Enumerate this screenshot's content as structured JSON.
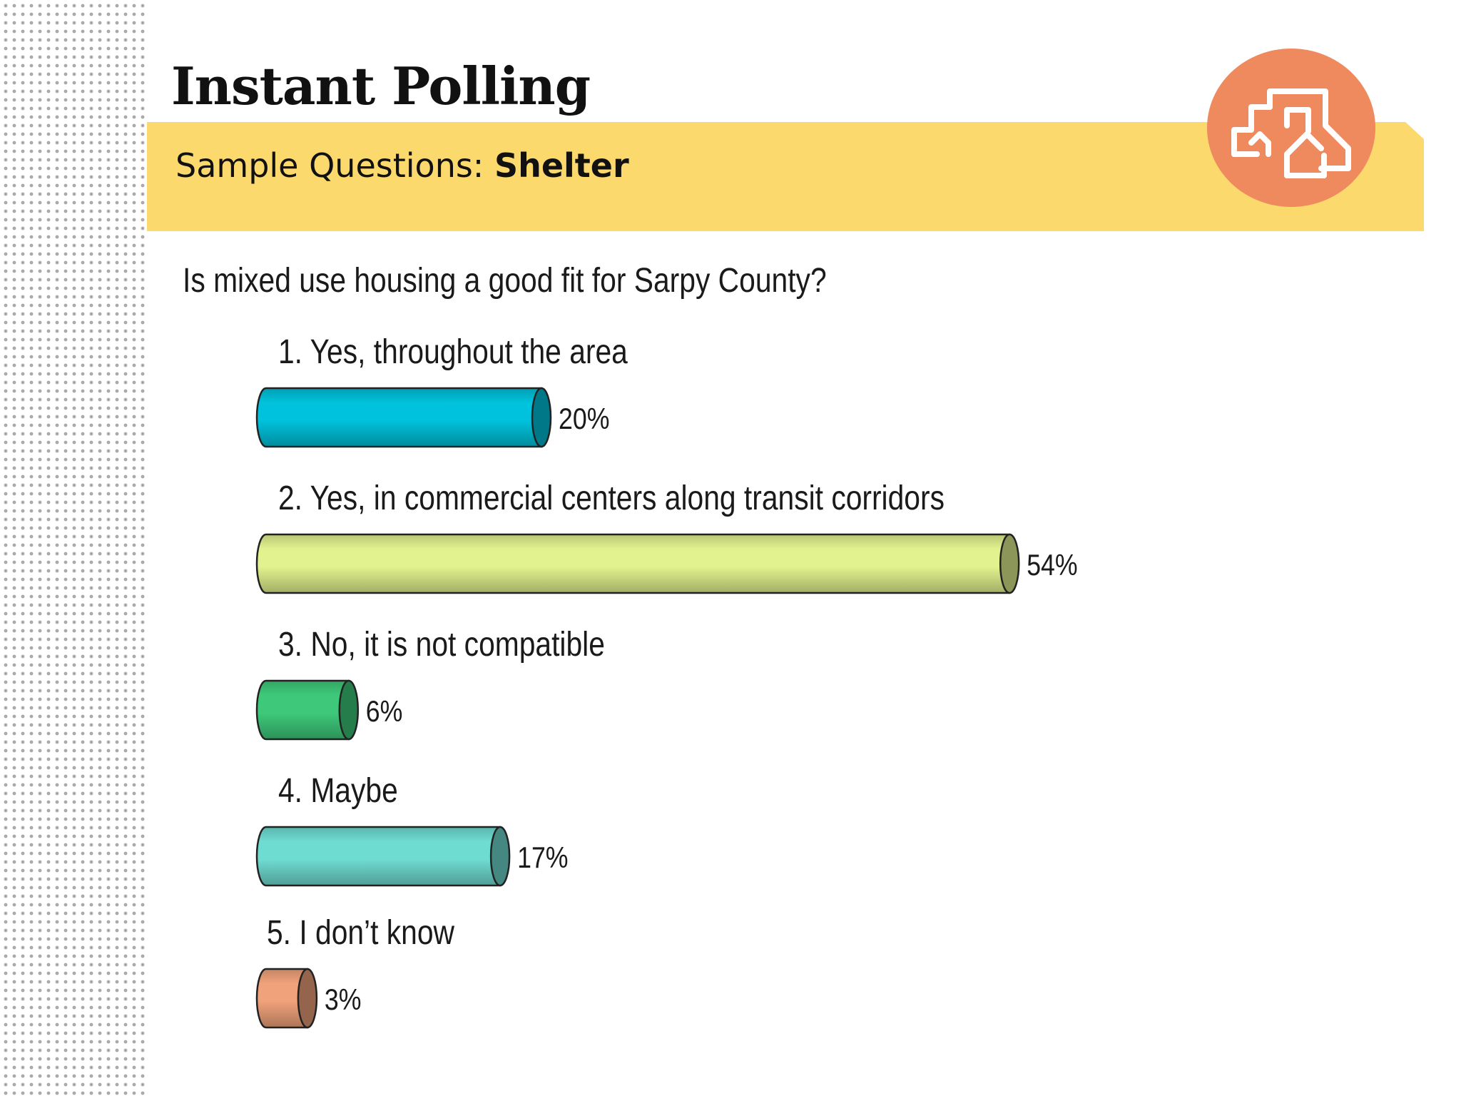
{
  "page_title": "Instant Polling",
  "banner": {
    "prefix": "Sample Questions: ",
    "topic": "Shelter"
  },
  "logo": {
    "icon": "buildings-house-icon",
    "color": "#ef8a5e"
  },
  "chart_data": {
    "type": "bar",
    "title": "Is mixed use housing a good fit for Sarpy County?",
    "categories": [
      "1. Yes, throughout the area",
      "2. Yes, in commercial centers along transit corridors",
      "3. No, it is not compatible",
      "4. Maybe",
      "5. I don’t know"
    ],
    "values": [
      20,
      54,
      6,
      17,
      3
    ],
    "value_labels": [
      "20%",
      "54%",
      "6%",
      "17%",
      "3%"
    ],
    "unit": "%",
    "orientation": "horizontal",
    "style": "3d-cylinder",
    "colors": [
      "#00c2dc",
      "#e2f28e",
      "#3ec97a",
      "#6fdcd2",
      "#f0a27a"
    ],
    "grid": false,
    "legend": "none"
  }
}
